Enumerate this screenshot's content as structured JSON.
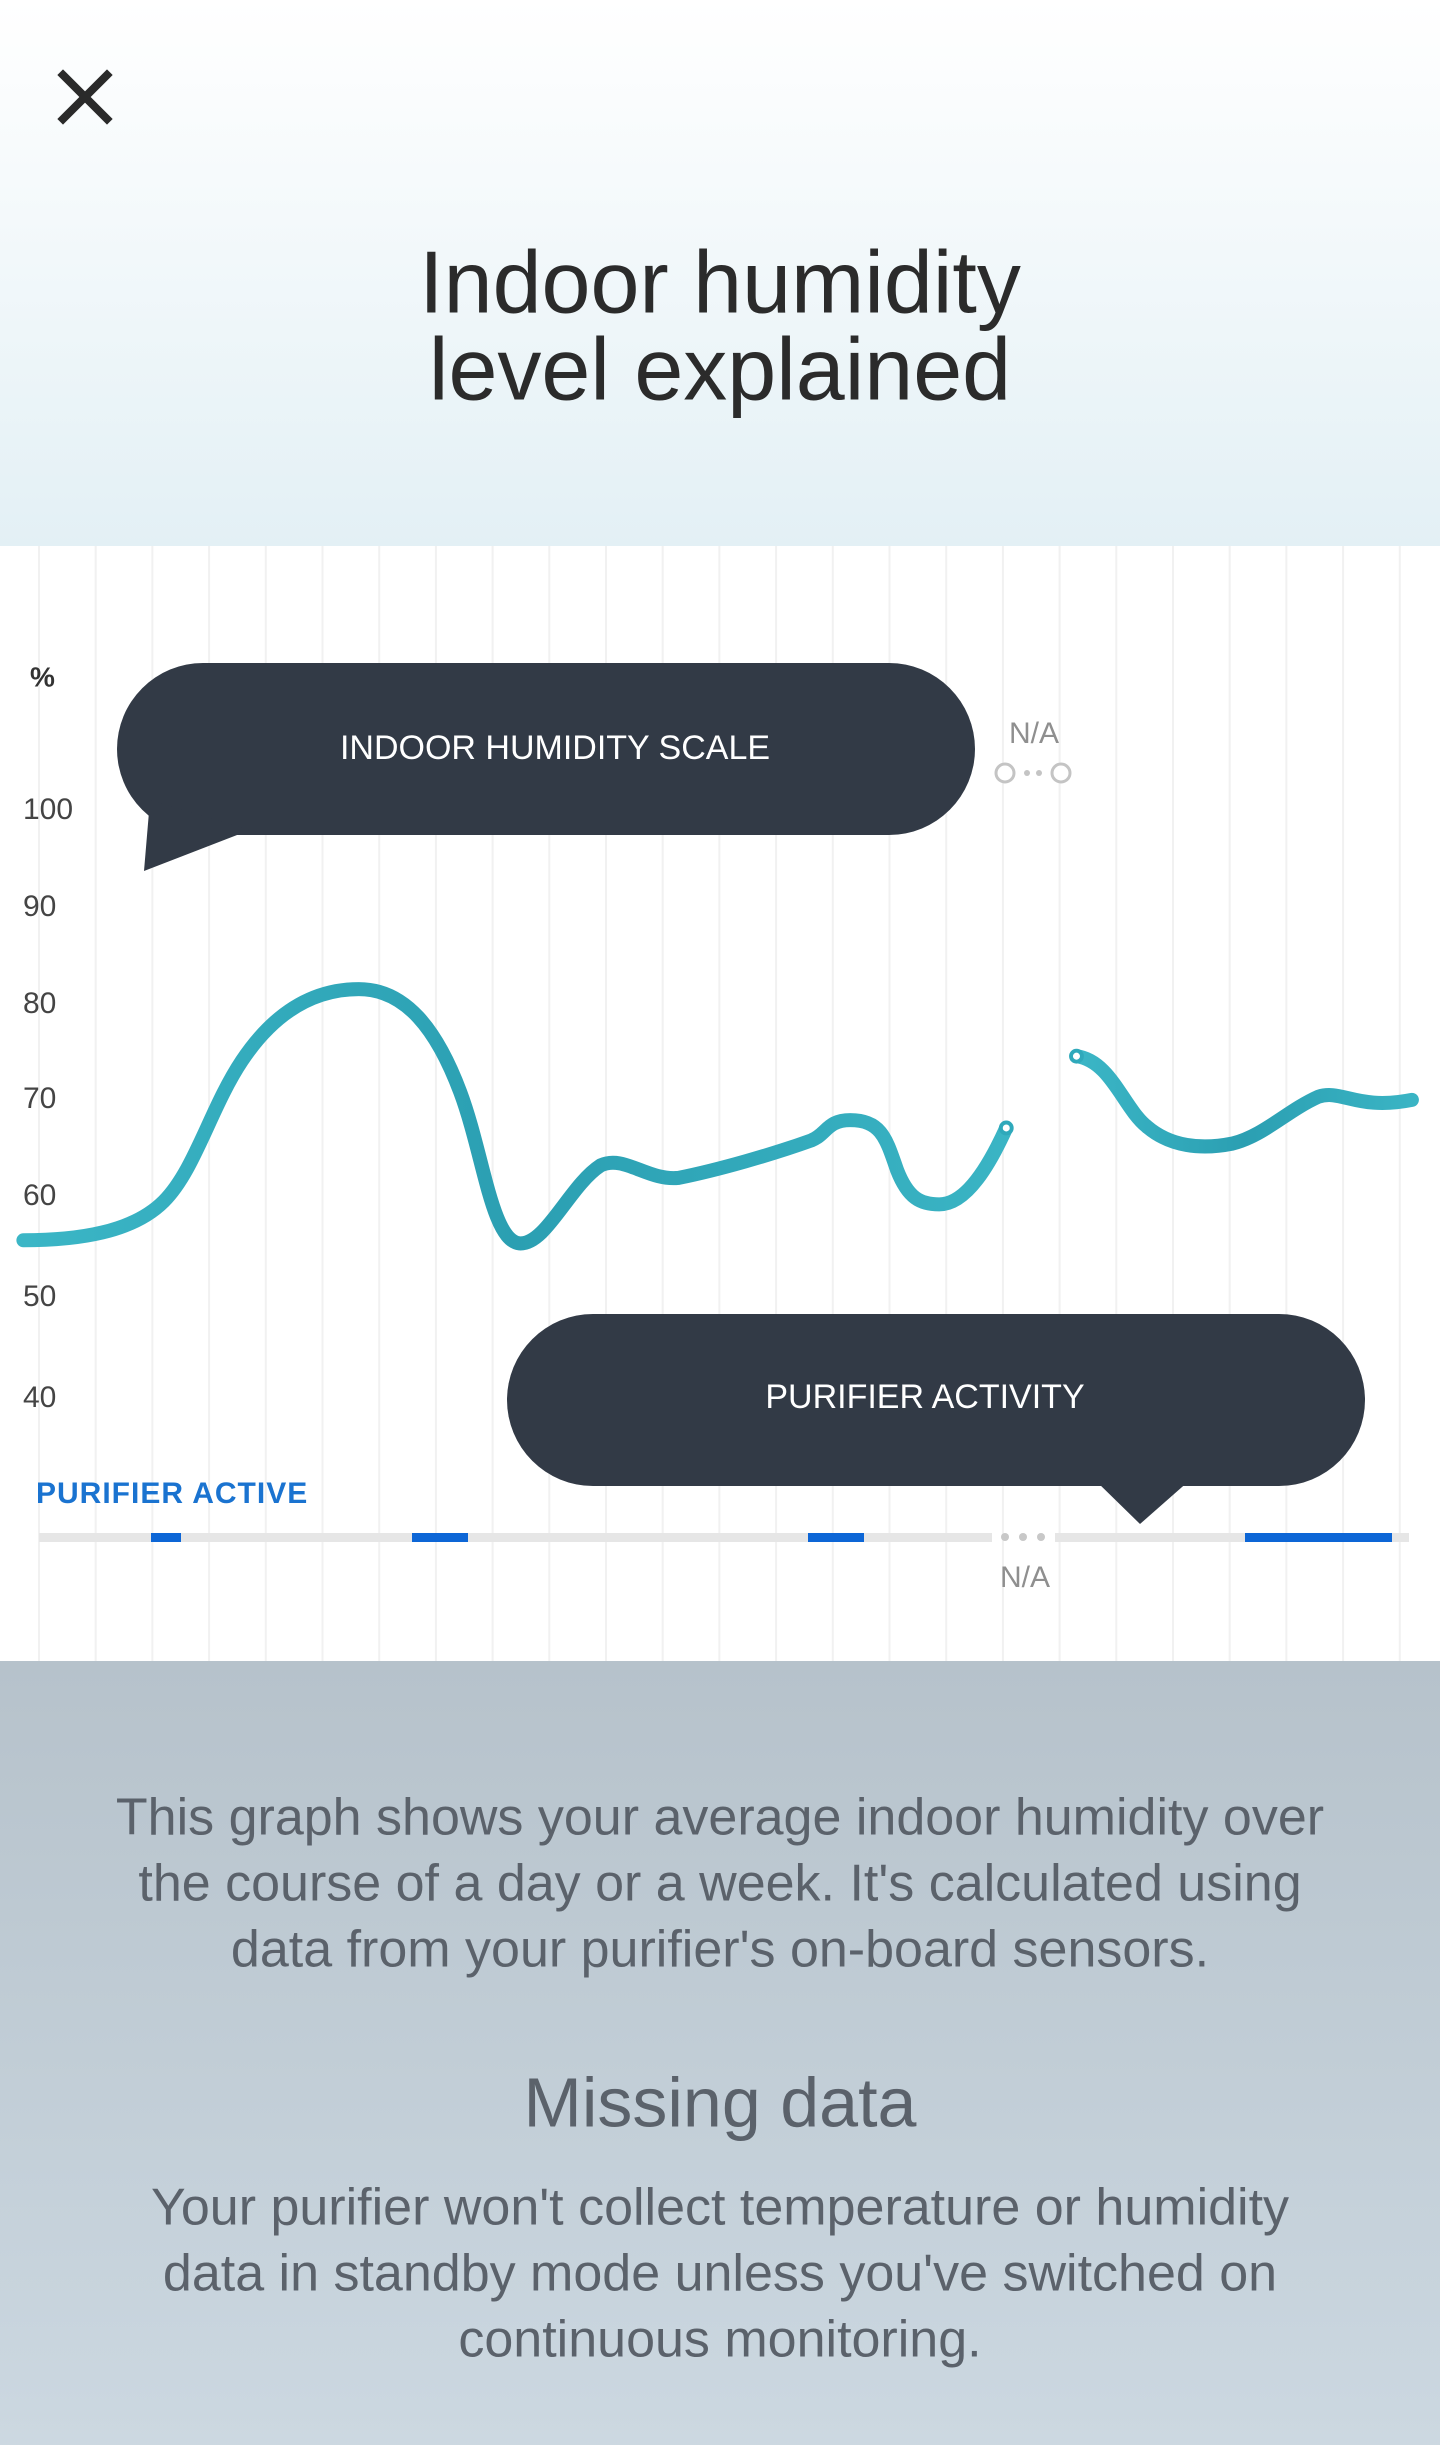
{
  "header": {
    "title_lines": [
      "Indoor humidity",
      "level explained"
    ]
  },
  "chart": {
    "unit_label": "%",
    "y_labels": [
      "100",
      "90",
      "80",
      "70",
      "60",
      "50",
      "40"
    ],
    "scale_callout": "INDOOR HUMIDITY SCALE",
    "activity_callout": "PURIFIER ACTIVITY",
    "na_top": "N/A",
    "na_bottom": "N/A",
    "legend": "PURIFIER ACTIVE"
  },
  "body": {
    "intro_lines": [
      "This graph shows your average indoor humidity over",
      "the course of a day or a week. It's calculated using",
      "data from your purifier's on-board sensors."
    ],
    "heading": "Missing data",
    "missing_lines": [
      "Your purifier won't collect temperature or humidity",
      "data in standby mode unless you've switched on",
      "continuous monitoring."
    ]
  }
}
